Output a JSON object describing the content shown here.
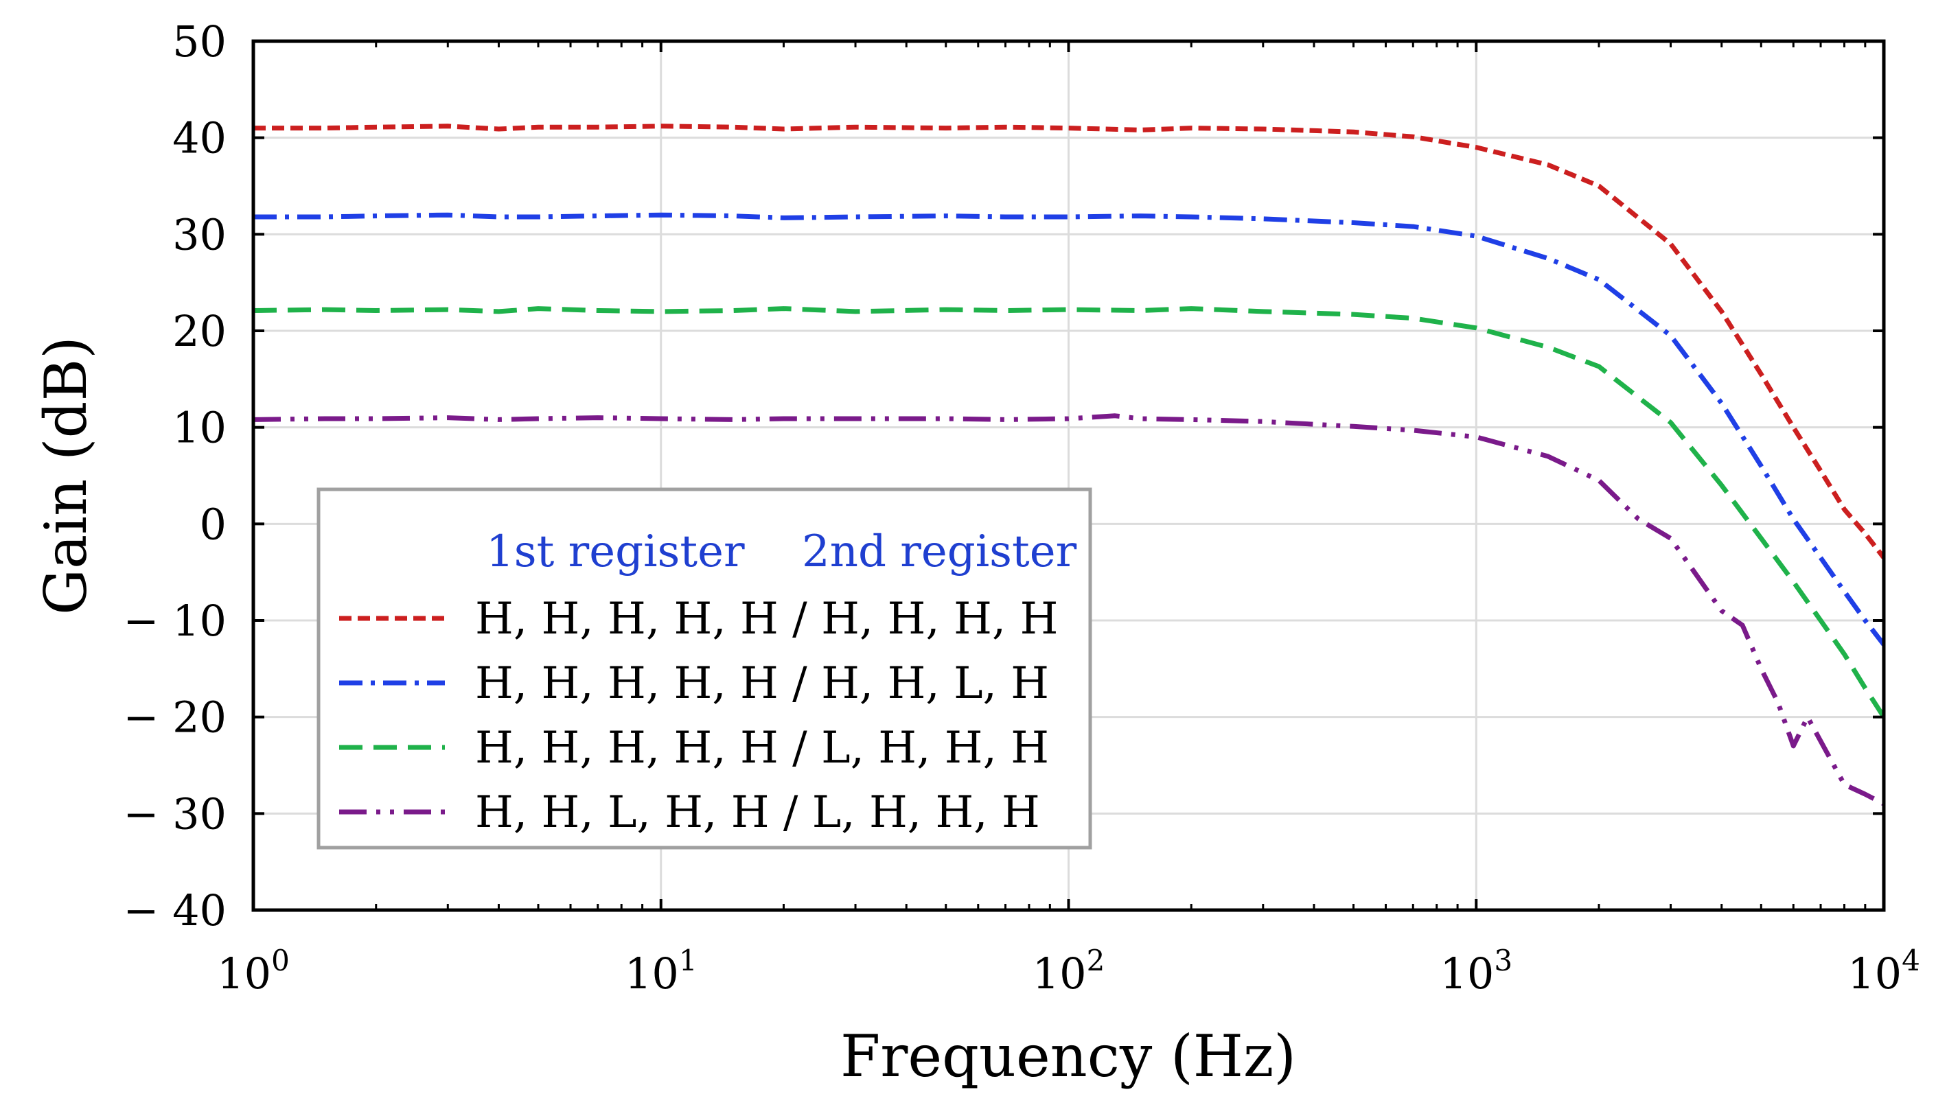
{
  "chart_data": {
    "type": "line",
    "xscale": "log",
    "xlim": [
      1,
      10000
    ],
    "ylim": [
      -40,
      50
    ],
    "xlabel": "Frequency (Hz)",
    "ylabel": "Gain (dB)",
    "grid": true,
    "x_ticks": [
      {
        "value": 1,
        "base": "10",
        "exp": "0"
      },
      {
        "value": 10,
        "base": "10",
        "exp": "1"
      },
      {
        "value": 100,
        "base": "10",
        "exp": "2"
      },
      {
        "value": 1000,
        "base": "10",
        "exp": "3"
      },
      {
        "value": 10000,
        "base": "10",
        "exp": "4"
      }
    ],
    "y_ticks": [
      {
        "value": 50,
        "label": "50"
      },
      {
        "value": 40,
        "label": "40"
      },
      {
        "value": 30,
        "label": "30"
      },
      {
        "value": 20,
        "label": "20"
      },
      {
        "value": 10,
        "label": "10"
      },
      {
        "value": 0,
        "label": "0"
      },
      {
        "value": -10,
        "label": "− 10"
      },
      {
        "value": -20,
        "label": "− 20"
      },
      {
        "value": -30,
        "label": "− 30"
      },
      {
        "value": -40,
        "label": "− 40"
      }
    ],
    "legend": {
      "position": "lower-left",
      "header_left": "1st register",
      "header_right": "2nd register",
      "header_color": "#1f3fd0"
    },
    "series": [
      {
        "name": "H, H, H, H, H / H, H, H, H",
        "color": "#cc1f1f",
        "dash": "dashed-short",
        "x": [
          1,
          1.5,
          2,
          3,
          4,
          5,
          7,
          10,
          15,
          20,
          30,
          50,
          70,
          100,
          150,
          200,
          300,
          500,
          700,
          1000,
          1500,
          2000,
          3000,
          4000,
          5000,
          6000,
          7000,
          8000,
          9000,
          10000
        ],
        "y": [
          41.0,
          41.0,
          41.1,
          41.2,
          40.9,
          41.1,
          41.1,
          41.2,
          41.1,
          40.9,
          41.1,
          41.0,
          41.1,
          41.0,
          40.8,
          41.0,
          40.9,
          40.6,
          40.1,
          39.0,
          37.2,
          35.0,
          29.0,
          22.0,
          15.5,
          10.0,
          5.5,
          1.5,
          -1.0,
          -3.5
        ]
      },
      {
        "name": "H, H, H, H, H / H, H, L, H",
        "color": "#1f3fe6",
        "dash": "dash-dot",
        "x": [
          1,
          1.5,
          2,
          3,
          4,
          5,
          7,
          10,
          15,
          20,
          30,
          50,
          70,
          100,
          150,
          200,
          300,
          500,
          700,
          1000,
          1500,
          2000,
          3000,
          4000,
          5000,
          6000,
          7000,
          8000,
          9000,
          10000
        ],
        "y": [
          31.8,
          31.8,
          31.9,
          32.0,
          31.8,
          31.8,
          31.9,
          32.0,
          31.9,
          31.7,
          31.8,
          31.9,
          31.8,
          31.8,
          31.9,
          31.8,
          31.6,
          31.2,
          30.8,
          29.8,
          27.5,
          25.3,
          19.5,
          12.5,
          6.0,
          0.5,
          -3.5,
          -7.0,
          -10.0,
          -12.5
        ]
      },
      {
        "name": "H, H, H, H, H / L, H, H, H",
        "color": "#1fb24a",
        "dash": "dashed-long",
        "x": [
          1,
          1.5,
          2,
          3,
          4,
          5,
          7,
          10,
          15,
          20,
          30,
          50,
          70,
          100,
          150,
          200,
          300,
          500,
          700,
          1000,
          1500,
          2000,
          3000,
          4000,
          5000,
          6000,
          7000,
          8000,
          9000,
          10000
        ],
        "y": [
          22.1,
          22.2,
          22.1,
          22.2,
          22.0,
          22.3,
          22.1,
          22.0,
          22.1,
          22.3,
          22.0,
          22.2,
          22.1,
          22.2,
          22.1,
          22.3,
          22.0,
          21.7,
          21.3,
          20.3,
          18.3,
          16.3,
          10.5,
          4.0,
          -1.5,
          -6.0,
          -10.0,
          -13.5,
          -17.0,
          -20.0
        ]
      },
      {
        "name": "H, H, L, H, H / L, H, H, H",
        "color": "#7a1a8a",
        "dash": "dash-dot-dot",
        "x": [
          1,
          1.5,
          2,
          3,
          4,
          5,
          7,
          10,
          15,
          20,
          30,
          50,
          70,
          100,
          130,
          150,
          200,
          300,
          500,
          700,
          1000,
          1500,
          2000,
          2500,
          3000,
          4000,
          4500,
          5000,
          5500,
          6000,
          6500,
          7000,
          8000,
          9000,
          10000
        ],
        "y": [
          10.8,
          10.9,
          10.9,
          11.0,
          10.8,
          10.9,
          11.0,
          10.9,
          10.8,
          10.9,
          10.9,
          10.9,
          10.8,
          10.9,
          11.2,
          10.9,
          10.8,
          10.6,
          10.1,
          9.7,
          9.0,
          7.0,
          4.5,
          0.5,
          -1.5,
          -9.0,
          -10.5,
          -15.0,
          -18.5,
          -23.0,
          -20.0,
          -22.5,
          -27.0,
          -28.0,
          -29.0
        ]
      }
    ]
  }
}
